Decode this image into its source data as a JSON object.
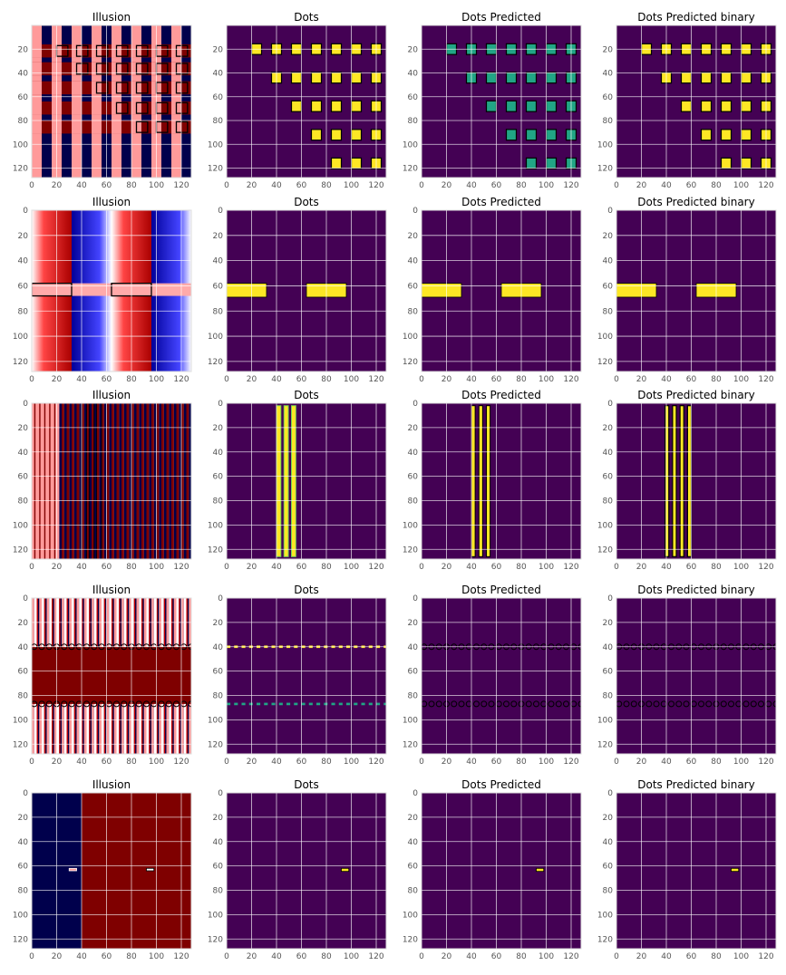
{
  "colors": {
    "viridis_bg": "#440154",
    "yellow": "#fde725",
    "teal": "#21a585",
    "green": "#74d055",
    "dark_red": "#7f0000",
    "navy": "#00004c",
    "pink": "#ff9a9a",
    "blue": "#0000cc",
    "red": "#cc0000",
    "white": "#ffffff",
    "grid": "#ffffff",
    "outline": "#000000"
  },
  "chart_data": [
    {
      "row": 0,
      "col": 0,
      "type": "heatmap",
      "title": "Illusion",
      "style": "illusion_grid",
      "xlim": [
        0,
        128
      ],
      "ylim": [
        128,
        0
      ],
      "xticks": [
        0,
        20,
        40,
        60,
        80,
        100,
        120
      ],
      "yticks": [
        20,
        40,
        60,
        80,
        100,
        120
      ],
      "grid": true
    },
    {
      "row": 0,
      "col": 1,
      "type": "heatmap",
      "title": "Dots",
      "style": "dots_staircase",
      "fill": "yellow",
      "xlim": [
        0,
        128
      ],
      "ylim": [
        128,
        0
      ],
      "xticks": [
        0,
        20,
        40,
        60,
        80,
        100,
        120
      ],
      "yticks": [
        20,
        40,
        60,
        80,
        100,
        120
      ],
      "grid": true
    },
    {
      "row": 0,
      "col": 2,
      "type": "heatmap",
      "title": "Dots Predicted",
      "style": "dots_staircase",
      "fill": "teal",
      "xlim": [
        0,
        128
      ],
      "ylim": [
        128,
        0
      ],
      "xticks": [
        0,
        20,
        40,
        60,
        80,
        100,
        120
      ],
      "yticks": [
        20,
        40,
        60,
        80,
        100,
        120
      ],
      "grid": true
    },
    {
      "row": 0,
      "col": 3,
      "type": "heatmap",
      "title": "Dots Predicted binary",
      "style": "dots_staircase",
      "fill": "yellow",
      "xlim": [
        0,
        128
      ],
      "ylim": [
        128,
        0
      ],
      "xticks": [
        0,
        20,
        40,
        60,
        80,
        100,
        120
      ],
      "yticks": [
        20,
        40,
        60,
        80,
        100,
        120
      ],
      "grid": true
    },
    {
      "row": 1,
      "col": 0,
      "type": "heatmap",
      "title": "Illusion",
      "style": "illusion_gradient",
      "xlim": [
        0,
        128
      ],
      "ylim": [
        128,
        0
      ],
      "xticks": [
        0,
        20,
        40,
        60,
        80,
        100,
        120
      ],
      "yticks": [
        0,
        20,
        40,
        60,
        80,
        100,
        120
      ],
      "grid": true
    },
    {
      "row": 1,
      "col": 1,
      "type": "heatmap",
      "title": "Dots",
      "style": "bars_h",
      "xlim": [
        0,
        128
      ],
      "ylim": [
        128,
        0
      ],
      "xticks": [
        0,
        20,
        40,
        60,
        80,
        100,
        120
      ],
      "yticks": [
        0,
        20,
        40,
        60,
        80,
        100,
        120
      ],
      "grid": true
    },
    {
      "row": 1,
      "col": 2,
      "type": "heatmap",
      "title": "Dots Predicted",
      "style": "bars_h",
      "xlim": [
        0,
        128
      ],
      "ylim": [
        128,
        0
      ],
      "xticks": [
        0,
        20,
        40,
        60,
        80,
        100,
        120
      ],
      "yticks": [
        0,
        20,
        40,
        60,
        80,
        100,
        120
      ],
      "grid": true
    },
    {
      "row": 1,
      "col": 3,
      "type": "heatmap",
      "title": "Dots Predicted binary",
      "style": "bars_h",
      "xlim": [
        0,
        128
      ],
      "ylim": [
        128,
        0
      ],
      "xticks": [
        0,
        20,
        40,
        60,
        80,
        100,
        120
      ],
      "yticks": [
        0,
        20,
        40,
        60,
        80,
        100,
        120
      ],
      "grid": true
    },
    {
      "row": 2,
      "col": 0,
      "type": "heatmap",
      "title": "Illusion",
      "style": "illusion_stripes",
      "xlim": [
        0,
        128
      ],
      "ylim": [
        128,
        0
      ],
      "xticks": [
        0,
        20,
        40,
        60,
        80,
        100,
        120
      ],
      "yticks": [
        0,
        20,
        40,
        60,
        80,
        100,
        120
      ],
      "grid": true
    },
    {
      "row": 2,
      "col": 1,
      "type": "heatmap",
      "title": "Dots",
      "style": "vbars",
      "variant": "dots",
      "xlim": [
        0,
        128
      ],
      "ylim": [
        128,
        0
      ],
      "xticks": [
        0,
        20,
        40,
        60,
        80,
        100,
        120
      ],
      "yticks": [
        0,
        20,
        40,
        60,
        80,
        100,
        120
      ],
      "grid": true
    },
    {
      "row": 2,
      "col": 2,
      "type": "heatmap",
      "title": "Dots Predicted",
      "style": "vbars",
      "variant": "pred",
      "xlim": [
        0,
        128
      ],
      "ylim": [
        128,
        0
      ],
      "xticks": [
        0,
        20,
        40,
        60,
        80,
        100,
        120
      ],
      "yticks": [
        0,
        20,
        40,
        60,
        80,
        100,
        120
      ],
      "grid": true
    },
    {
      "row": 2,
      "col": 3,
      "type": "heatmap",
      "title": "Dots Predicted binary",
      "style": "vbars",
      "variant": "binary",
      "xlim": [
        0,
        128
      ],
      "ylim": [
        128,
        0
      ],
      "xticks": [
        0,
        20,
        40,
        60,
        80,
        100,
        120
      ],
      "yticks": [
        0,
        20,
        40,
        60,
        80,
        100,
        120
      ],
      "grid": true
    },
    {
      "row": 3,
      "col": 0,
      "type": "heatmap",
      "title": "Illusion",
      "style": "illusion_bands",
      "xlim": [
        0,
        128
      ],
      "ylim": [
        128,
        0
      ],
      "xticks": [
        0,
        20,
        40,
        60,
        80,
        100,
        120
      ],
      "yticks": [
        0,
        20,
        40,
        60,
        80,
        100,
        120
      ],
      "grid": true
    },
    {
      "row": 3,
      "col": 1,
      "type": "heatmap",
      "title": "Dots",
      "style": "dotted_lines",
      "variant": "dots",
      "xlim": [
        0,
        128
      ],
      "ylim": [
        128,
        0
      ],
      "xticks": [
        0,
        20,
        40,
        60,
        80,
        100,
        120
      ],
      "yticks": [
        0,
        20,
        40,
        60,
        80,
        100,
        120
      ],
      "grid": true
    },
    {
      "row": 3,
      "col": 2,
      "type": "heatmap",
      "title": "Dots Predicted",
      "style": "dotted_lines",
      "variant": "pred",
      "xlim": [
        0,
        128
      ],
      "ylim": [
        128,
        0
      ],
      "xticks": [
        0,
        20,
        40,
        60,
        80,
        100,
        120
      ],
      "yticks": [
        0,
        20,
        40,
        60,
        80,
        100,
        120
      ],
      "grid": true
    },
    {
      "row": 3,
      "col": 3,
      "type": "heatmap",
      "title": "Dots Predicted binary",
      "style": "dotted_lines",
      "variant": "pred",
      "xlim": [
        0,
        128
      ],
      "ylim": [
        128,
        0
      ],
      "xticks": [
        0,
        20,
        40,
        60,
        80,
        100,
        120
      ],
      "yticks": [
        0,
        20,
        40,
        60,
        80,
        100,
        120
      ],
      "grid": true
    },
    {
      "row": 4,
      "col": 0,
      "type": "heatmap",
      "title": "Illusion",
      "style": "illusion_split",
      "xlim": [
        0,
        128
      ],
      "ylim": [
        128,
        0
      ],
      "xticks": [
        0,
        20,
        40,
        60,
        80,
        100,
        120
      ],
      "yticks": [
        0,
        20,
        40,
        60,
        80,
        100,
        120
      ],
      "grid": true
    },
    {
      "row": 4,
      "col": 1,
      "type": "heatmap",
      "title": "Dots",
      "style": "single_dot",
      "xlim": [
        0,
        128
      ],
      "ylim": [
        128,
        0
      ],
      "xticks": [
        0,
        20,
        40,
        60,
        80,
        100,
        120
      ],
      "yticks": [
        0,
        20,
        40,
        60,
        80,
        100,
        120
      ],
      "grid": true
    },
    {
      "row": 4,
      "col": 2,
      "type": "heatmap",
      "title": "Dots Predicted",
      "style": "single_dot",
      "xlim": [
        0,
        128
      ],
      "ylim": [
        128,
        0
      ],
      "xticks": [
        0,
        20,
        40,
        60,
        80,
        100,
        120
      ],
      "yticks": [
        0,
        20,
        40,
        60,
        80,
        100,
        120
      ],
      "grid": true
    },
    {
      "row": 4,
      "col": 3,
      "type": "heatmap",
      "title": "Dots Predicted binary",
      "style": "single_dot",
      "xlim": [
        0,
        128
      ],
      "ylim": [
        128,
        0
      ],
      "xticks": [
        0,
        20,
        40,
        60,
        80,
        100,
        120
      ],
      "yticks": [
        0,
        20,
        40,
        60,
        80,
        100,
        120
      ],
      "grid": true
    }
  ]
}
